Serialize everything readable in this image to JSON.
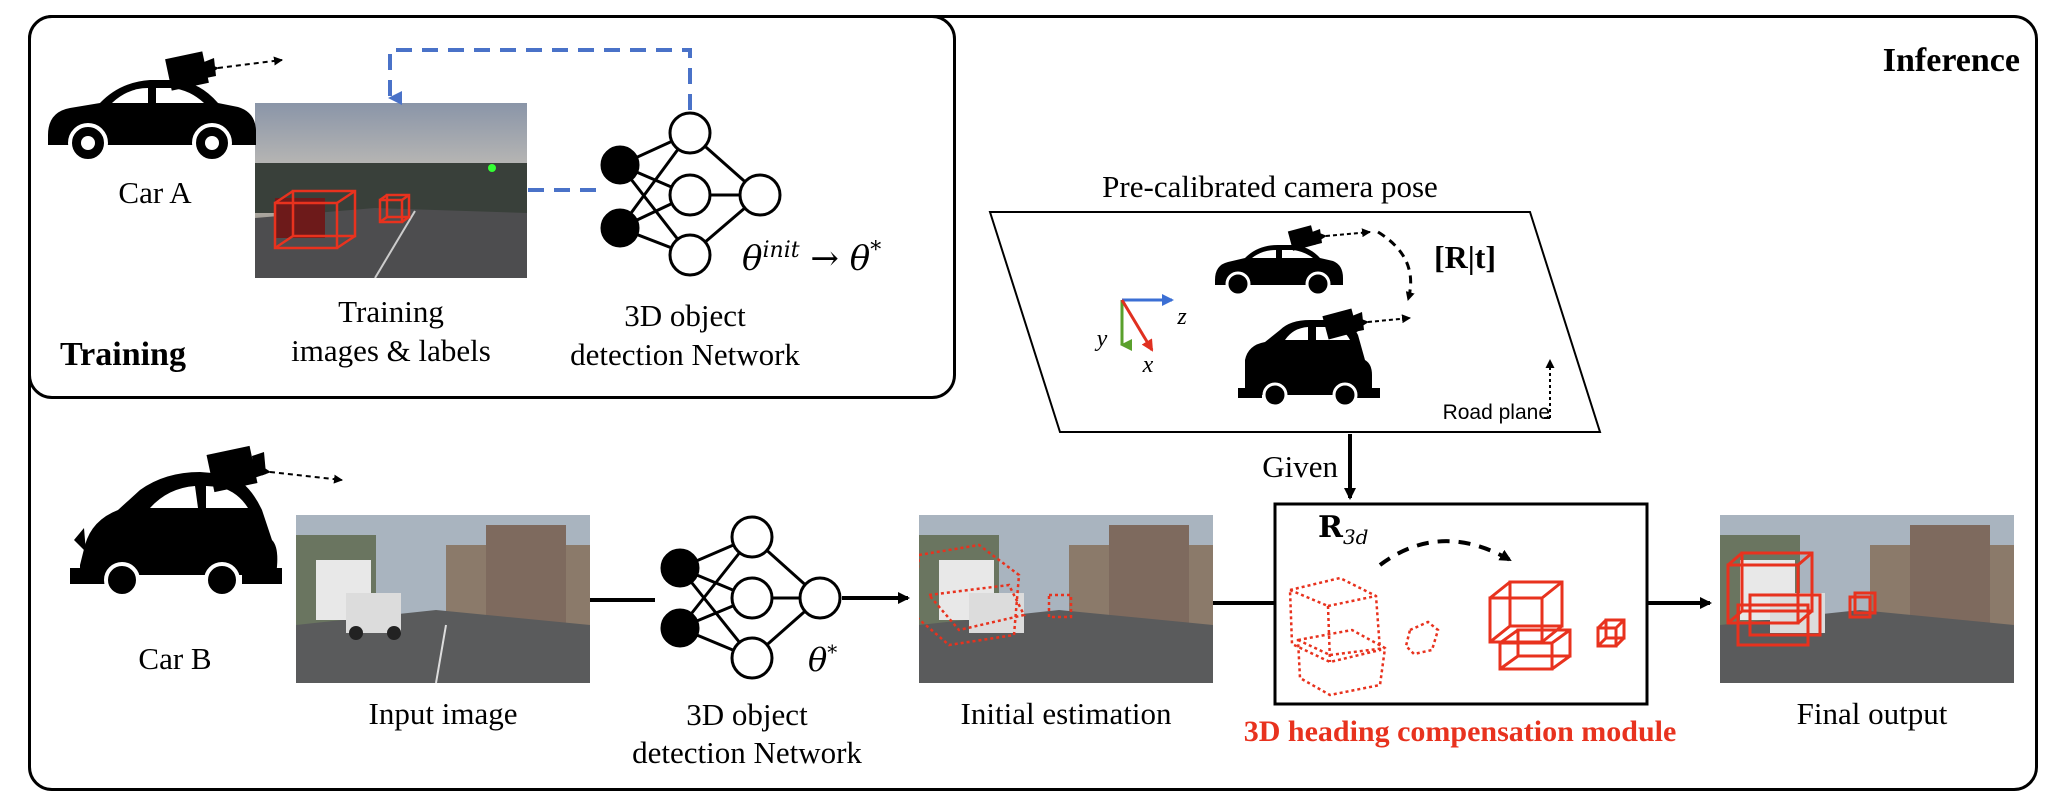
{
  "panels": {
    "inference_title": "Inference",
    "training_title": "Training"
  },
  "training": {
    "car_label": "Car A",
    "images_label_line1": "Training",
    "images_label_line2": "images & labels",
    "network_label_line1": "3D object",
    "network_label_line2": "detection Network",
    "param_init": "θ",
    "param_init_sup": "init",
    "param_arrow": "→",
    "param_final": "θ",
    "param_final_sup": "*"
  },
  "pose": {
    "title": "Pre-calibrated camera pose",
    "transform_label": "[R|t]",
    "axis_y": "y",
    "axis_z": "z",
    "axis_x": "x",
    "road_plane": "Road plane",
    "given": "Given"
  },
  "inference": {
    "car_label": "Car B",
    "input_label": "Input image",
    "network_label_line1": "3D object",
    "network_label_line2": "detection Network",
    "theta": "θ",
    "theta_sup": "*",
    "initial_label": "Initial estimation",
    "module_rotation": "R",
    "module_rotation_sub": "3d",
    "module_label": "3D heading compensation module",
    "final_label": "Final output"
  },
  "colors": {
    "accent_red": "#e8321e",
    "dashed_blue": "#4a72c8",
    "axis_green": "#5aa02c",
    "axis_blue": "#3b6fd4",
    "axis_red": "#e03020"
  }
}
